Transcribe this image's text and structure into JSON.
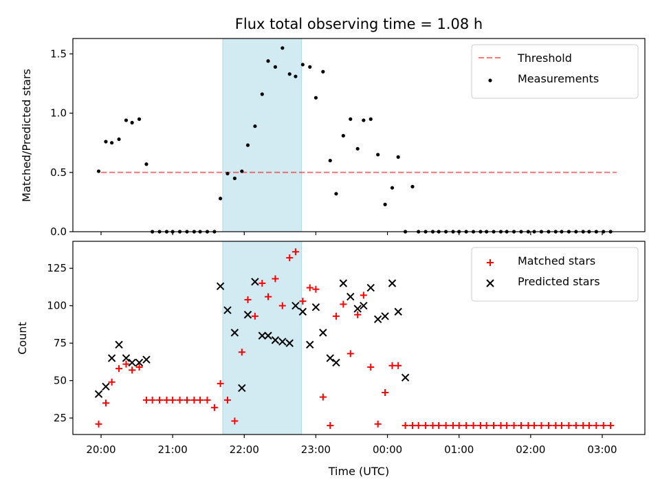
{
  "chart_data": [
    {
      "type": "scatter",
      "title": "Flux total observing time = 1.08 h",
      "xlabel": "",
      "ylabel": "Matched/Predicted stars",
      "ylim": [
        0,
        1.63
      ],
      "yticks": [
        "0.0",
        "0.5",
        "1.0",
        "1.5"
      ],
      "ytick_values": [
        0,
        0.5,
        1.0,
        1.5
      ],
      "legend_position": "top-right",
      "shaded_interval": {
        "start": "21:42",
        "end": "22:48",
        "color": "#add8e6"
      },
      "threshold": {
        "name": "Threshold",
        "y": 0.5,
        "x_start": "20:00",
        "x_end": "03:12",
        "color": "#ff0000",
        "style": "dashed"
      },
      "series": [
        {
          "name": "Measurements",
          "marker": "dot",
          "color": "#000000",
          "x": [
            "19:58",
            "20:04",
            "20:09",
            "20:15",
            "20:21",
            "20:26",
            "20:32",
            "20:38",
            "20:43",
            "20:49",
            "20:55",
            "21:00",
            "21:06",
            "21:12",
            "21:18",
            "21:23",
            "21:29",
            "21:35",
            "21:40",
            "21:46",
            "21:52",
            "21:58",
            "22:03",
            "22:09",
            "22:15",
            "22:20",
            "22:26",
            "22:32",
            "22:38",
            "22:43",
            "22:49",
            "22:55",
            "23:00",
            "23:06",
            "23:12",
            "23:17",
            "23:23",
            "23:29",
            "23:35",
            "23:40",
            "23:46",
            "23:52",
            "23:58",
            "00:04",
            "00:09",
            "00:15",
            "00:21",
            "00:26",
            "00:32",
            "00:38",
            "00:43",
            "00:49",
            "00:55",
            "01:00",
            "01:06",
            "01:12",
            "01:18",
            "01:23",
            "01:29",
            "01:35",
            "01:40",
            "01:46",
            "01:52",
            "01:58",
            "02:03",
            "02:09",
            "02:15",
            "02:21",
            "02:26",
            "02:32",
            "02:38",
            "02:44",
            "02:49",
            "02:55",
            "03:01",
            "03:07"
          ],
          "values": [
            0.51,
            0.76,
            0.75,
            0.78,
            0.94,
            0.92,
            0.95,
            0.57,
            0,
            0,
            0,
            0,
            0,
            0,
            0,
            0,
            0,
            0,
            0.28,
            0.49,
            0.45,
            0.51,
            0.73,
            0.89,
            1.16,
            1.44,
            1.39,
            1.55,
            1.33,
            1.31,
            1.41,
            1.39,
            1.13,
            1.35,
            0.6,
            0.32,
            0.81,
            0.95,
            0.7,
            0.94,
            0.95,
            0.65,
            0.23,
            0.37,
            0.63,
            0,
            0.38,
            0,
            0,
            0,
            0,
            0,
            0,
            0,
            0,
            0,
            0,
            0,
            0,
            0,
            0,
            0,
            0,
            0,
            0,
            0,
            0,
            0,
            0,
            0,
            0,
            0,
            0,
            0,
            0,
            0
          ]
        }
      ]
    },
    {
      "type": "scatter",
      "title": "",
      "xlabel": "Time (UTC)",
      "ylabel": "Count",
      "ylim": [
        14,
        143
      ],
      "yticks": [
        "25",
        "50",
        "75",
        "100",
        "125"
      ],
      "ytick_values": [
        25,
        50,
        75,
        100,
        125
      ],
      "xticks": [
        "20:00",
        "21:00",
        "22:00",
        "23:00",
        "00:00",
        "01:00",
        "02:00",
        "03:00"
      ],
      "legend_position": "top-right",
      "shaded_interval": {
        "start": "21:42",
        "end": "22:48",
        "color": "#add8e6"
      },
      "series": [
        {
          "name": "Matched stars",
          "marker": "plus",
          "color": "#ff0000",
          "x": [
            "19:58",
            "20:04",
            "20:09",
            "20:15",
            "20:21",
            "20:26",
            "20:32",
            "20:38",
            "20:43",
            "20:49",
            "20:55",
            "21:00",
            "21:06",
            "21:12",
            "21:18",
            "21:23",
            "21:29",
            "21:35",
            "21:40",
            "21:46",
            "21:52",
            "21:58",
            "22:03",
            "22:09",
            "22:15",
            "22:20",
            "22:26",
            "22:32",
            "22:38",
            "22:43",
            "22:49",
            "22:55",
            "23:00",
            "23:06",
            "23:12",
            "23:17",
            "23:23",
            "23:29",
            "23:35",
            "23:40",
            "23:46",
            "23:52",
            "23:58",
            "00:04",
            "00:09",
            "00:15",
            "00:21",
            "00:26",
            "00:32",
            "00:38",
            "00:43",
            "00:49",
            "00:55",
            "01:00",
            "01:06",
            "01:12",
            "01:18",
            "01:23",
            "01:29",
            "01:35",
            "01:40",
            "01:46",
            "01:52",
            "01:58",
            "02:03",
            "02:09",
            "02:15",
            "02:21",
            "02:26",
            "02:32",
            "02:38",
            "02:44",
            "02:49",
            "02:55",
            "03:01",
            "03:07"
          ],
          "values": [
            21,
            35,
            49,
            58,
            61,
            57,
            59,
            37,
            37,
            37,
            37,
            37,
            37,
            37,
            37,
            37,
            37,
            32,
            48,
            37,
            23,
            69,
            104,
            93,
            115,
            106,
            118,
            100,
            132,
            136,
            103,
            112,
            111,
            39,
            20,
            93,
            101,
            68,
            94,
            107,
            59,
            21,
            42,
            60,
            60,
            20,
            20,
            20,
            20,
            20,
            20,
            20,
            20,
            20,
            20,
            20,
            20,
            20,
            20,
            20,
            20,
            20,
            20,
            20,
            20,
            20,
            20,
            20,
            20,
            20,
            20,
            20,
            20,
            20,
            20,
            20
          ]
        },
        {
          "name": "Predicted stars",
          "marker": "x",
          "color": "#000000",
          "x": [
            "19:58",
            "20:04",
            "20:09",
            "20:15",
            "20:21",
            "20:26",
            "20:32",
            "20:38",
            "21:40",
            "21:46",
            "21:52",
            "21:58",
            "22:03",
            "22:09",
            "22:15",
            "22:20",
            "22:26",
            "22:32",
            "22:38",
            "22:43",
            "22:49",
            "22:55",
            "23:00",
            "23:06",
            "23:12",
            "23:17",
            "23:23",
            "23:29",
            "23:35",
            "23:40",
            "23:46",
            "23:52",
            "23:58",
            "00:04",
            "00:09",
            "00:15"
          ],
          "values": [
            41,
            46,
            65,
            74,
            65,
            62,
            62,
            64,
            113,
            97,
            82,
            45,
            94,
            116,
            80,
            80,
            77,
            76,
            75,
            100,
            96,
            74,
            99,
            82,
            65,
            62,
            115,
            106,
            98,
            100,
            112,
            91,
            93,
            115,
            96,
            52
          ]
        }
      ]
    }
  ]
}
